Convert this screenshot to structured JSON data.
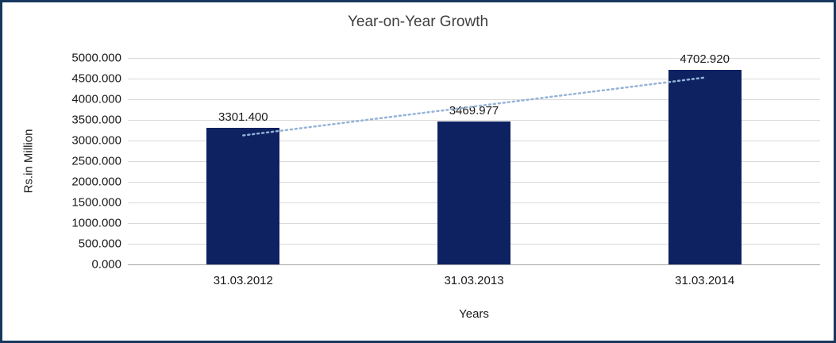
{
  "frame": {
    "border_color": "#17375E",
    "background": "#FFFFFF"
  },
  "chart_data": {
    "type": "bar",
    "title": "Year-on-Year Growth",
    "xlabel": "Years",
    "ylabel": "Rs.in Million",
    "categories": [
      "31.03.2012",
      "31.03.2013",
      "31.03.2014"
    ],
    "values": [
      3301.4,
      3469.977,
      4702.92
    ],
    "value_labels": [
      "3301.400",
      "3469.977",
      "4702.920"
    ],
    "ylim": [
      0,
      5000
    ],
    "ytick_step": 500,
    "ytick_labels": [
      "0.000",
      "500.000",
      "1000.000",
      "1500.000",
      "2000.000",
      "2500.000",
      "3000.000",
      "3500.000",
      "4000.000",
      "4500.000",
      "5000.000"
    ],
    "grid": true,
    "grid_color": "#D9D9D9",
    "bar_color": "#0E2262",
    "trendline": {
      "style": "dotted",
      "color": "#95B3D7"
    },
    "legend": "none"
  }
}
